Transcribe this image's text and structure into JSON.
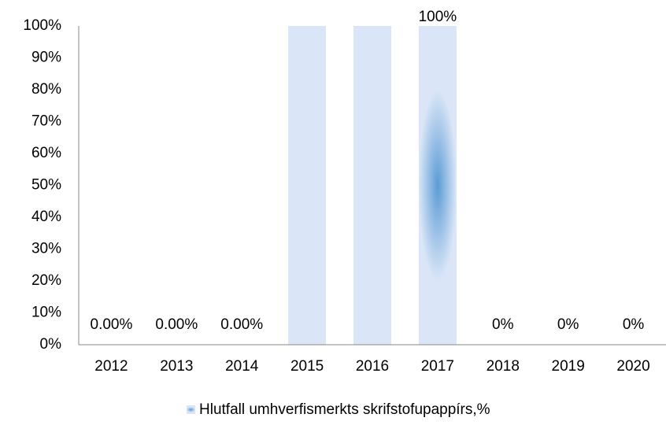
{
  "chart_data": {
    "type": "bar",
    "categories": [
      "2012",
      "2013",
      "2014",
      "2015",
      "2016",
      "2017",
      "2018",
      "2019",
      "2020"
    ],
    "series": [
      {
        "name": "Hlutfall umhverfismerkts skrifstofupappírs,%",
        "color": "#5b9bd5",
        "colors": [
          "#dae6f7",
          "#dae6f7",
          "#dae6f7",
          "#dae6f7",
          "#dae6f7",
          "#5b9bd5",
          "#dae6f7",
          "#dae6f7",
          "#dae6f7"
        ],
        "values": [
          0,
          0,
          0,
          100,
          100,
          100,
          0,
          0,
          0
        ],
        "value_labels": [
          "0.00%",
          "0.00%",
          "0.00%",
          null,
          null,
          "100%",
          "0%",
          "0%",
          "0%"
        ]
      }
    ],
    "ylim": [
      0,
      100
    ],
    "yticks": [
      {
        "value": 0,
        "label": "0%"
      },
      {
        "value": 10,
        "label": "10%"
      },
      {
        "value": 20,
        "label": "20%"
      },
      {
        "value": 30,
        "label": "30%"
      },
      {
        "value": 40,
        "label": "40%"
      },
      {
        "value": 50,
        "label": "50%"
      },
      {
        "value": 60,
        "label": "60%"
      },
      {
        "value": 70,
        "label": "70%"
      },
      {
        "value": 80,
        "label": "80%"
      },
      {
        "value": 90,
        "label": "90%"
      },
      {
        "value": 100,
        "label": "100%"
      }
    ],
    "grid": false,
    "legend": "bottom"
  }
}
